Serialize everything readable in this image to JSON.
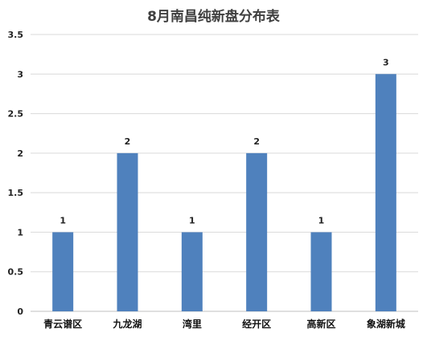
{
  "chart_data": {
    "type": "bar",
    "title": "8月南昌纯新盘分布表",
    "categories": [
      "青云谱区",
      "九龙湖",
      "湾里",
      "经开区",
      "高新区",
      "象湖新城"
    ],
    "values": [
      1,
      2,
      1,
      2,
      1,
      3
    ],
    "ylim": [
      0,
      3.5
    ],
    "yticks": [
      "0",
      "0.5",
      "1",
      "1.5",
      "2",
      "2.5",
      "3",
      "3.5"
    ],
    "grid": true,
    "legend": "none",
    "bar_color": "#4f81bd",
    "gridline_color": "#d9d9d9",
    "data_labels": true
  }
}
